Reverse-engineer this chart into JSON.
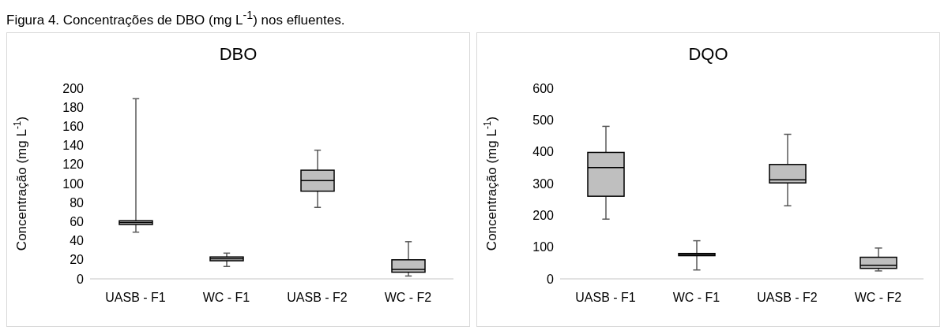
{
  "chart_data": [
    {
      "type": "box",
      "title": "DBO",
      "ylabel": "Concentração (mg L$^{-1}$)",
      "annotations": [
        "Figura 4. Concentrações de DBO (mg L$^{-1}$) nos efluentes."
      ],
      "categories": [
        "UASB - F1",
        "WC - F1",
        "UASB - F2",
        "WC - F2"
      ],
      "color": "#bfbfbf",
      "boxes": [
        {
          "low": 49,
          "q1": 57,
          "median": 59,
          "q3": 61,
          "high": 189
        },
        {
          "low": 13,
          "q1": 19,
          "median": 21,
          "q3": 23,
          "high": 27
        },
        {
          "low": 75,
          "q1": 92,
          "median": 103,
          "q3": 114,
          "high": 135
        },
        {
          "low": 3,
          "q1": 7,
          "median": 10,
          "q3": 20,
          "high": 39
        }
      ],
      "ylim": [
        0,
        200
      ],
      "yticks": [
        0,
        20,
        40,
        60,
        80,
        100,
        120,
        140,
        160,
        180,
        200
      ]
    },
    {
      "type": "box",
      "title": "DQO",
      "ylabel": "Concentração (mg L$^{-1}$)",
      "categories": [
        "UASB - F1",
        "WC - F1",
        "UASB - F2",
        "WC - F2"
      ],
      "color": "#bfbfbf",
      "boxes": [
        {
          "low": 188,
          "q1": 260,
          "median": 350,
          "q3": 398,
          "high": 480
        },
        {
          "low": 28,
          "q1": 73,
          "median": 77,
          "q3": 80,
          "high": 120
        },
        {
          "low": 230,
          "q1": 302,
          "median": 312,
          "q3": 360,
          "high": 455
        },
        {
          "low": 25,
          "q1": 33,
          "median": 43,
          "q3": 68,
          "high": 97
        }
      ],
      "ylim": [
        0,
        600
      ],
      "yticks": [
        0,
        100,
        200,
        300,
        400,
        500,
        600
      ]
    }
  ]
}
